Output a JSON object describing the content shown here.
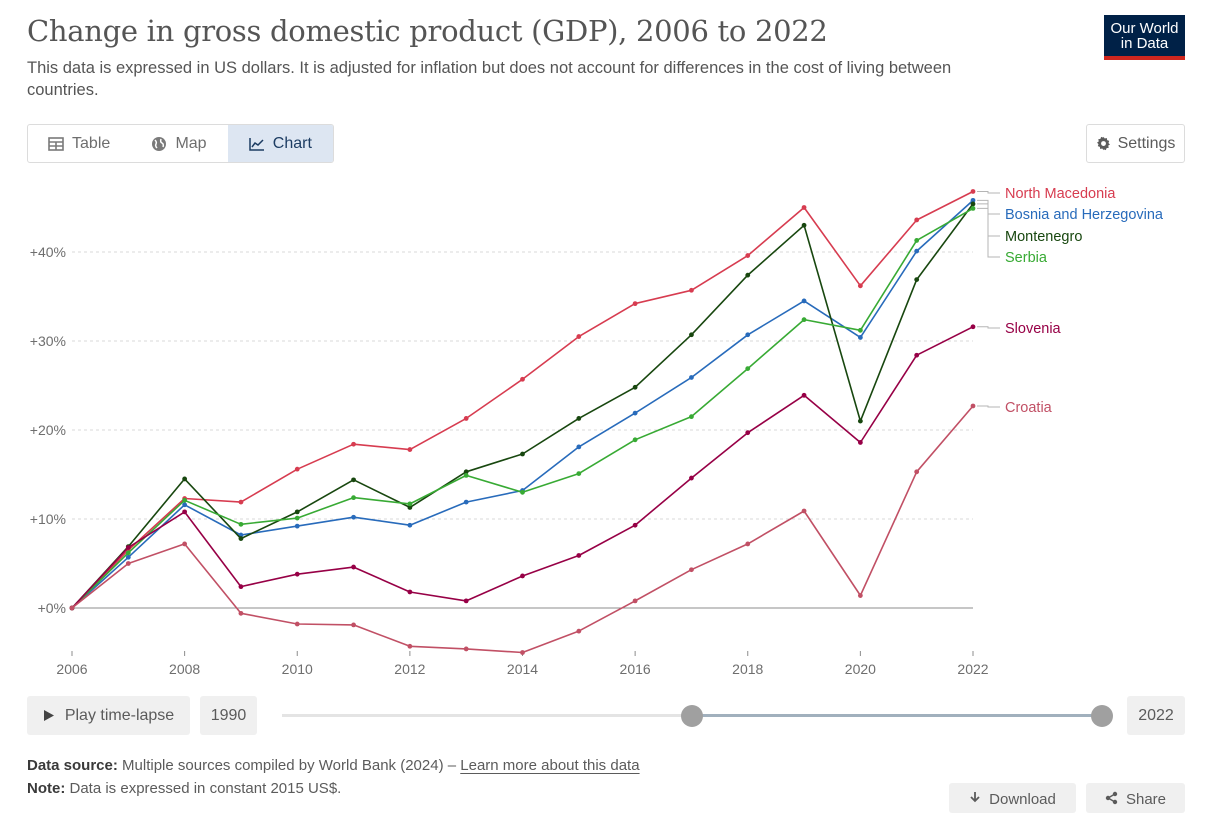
{
  "header": {
    "title": "Change in gross domestic product (GDP), 2006 to 2022",
    "subtitle": "This data is expressed in US dollars. It is adjusted for inflation but does not account for differences in the cost of living between countries.",
    "logo_line1": "Our World",
    "logo_line2": "in Data"
  },
  "tabs": [
    {
      "label": "Table",
      "icon": "table-icon"
    },
    {
      "label": "Map",
      "icon": "globe-icon"
    },
    {
      "label": "Chart",
      "icon": "line-chart-icon",
      "active": true
    }
  ],
  "settings_label": "Settings",
  "timeline": {
    "play_label": "Play time-lapse",
    "start_year": "1990",
    "end_year": "2022",
    "selected_range": [
      2006,
      2022
    ]
  },
  "footer": {
    "source_label": "Data source:",
    "source_text": "Multiple sources compiled by World Bank (2024) –",
    "source_link": "Learn more about this data",
    "note_label": "Note:",
    "note_text": "Data is expressed in constant 2015 US$.",
    "download_label": "Download",
    "share_label": "Share"
  },
  "chart_data": {
    "type": "line",
    "x": [
      2006,
      2007,
      2008,
      2009,
      2010,
      2011,
      2012,
      2013,
      2014,
      2015,
      2016,
      2017,
      2018,
      2019,
      2020,
      2021,
      2022
    ],
    "xticks": [
      2006,
      2008,
      2010,
      2012,
      2014,
      2016,
      2018,
      2020,
      2022
    ],
    "xtick_labels": [
      "2006",
      "2008",
      "2010",
      "2012",
      "2014",
      "2016",
      "2018",
      "2020",
      "2022"
    ],
    "yticks": [
      0,
      10,
      20,
      30,
      40
    ],
    "ytick_labels": [
      "+0%",
      "+10%",
      "+20%",
      "+30%",
      "+40%"
    ],
    "ylim": [
      -5,
      47
    ],
    "grid": "horizontal-dashed",
    "legend": "right-line-labels",
    "series": [
      {
        "name": "North Macedonia",
        "color": "#d73c50",
        "values": [
          0,
          6.5,
          12.3,
          11.9,
          15.6,
          18.4,
          17.8,
          21.3,
          25.7,
          30.5,
          34.2,
          35.7,
          39.6,
          45.0,
          36.2,
          43.6,
          46.8
        ]
      },
      {
        "name": "Bosnia and Herzegovina",
        "color": "#286bbb",
        "values": [
          0,
          5.7,
          11.6,
          8.2,
          9.2,
          10.2,
          9.3,
          11.9,
          13.2,
          18.1,
          21.9,
          25.9,
          30.7,
          34.5,
          30.4,
          40.1,
          45.8
        ]
      },
      {
        "name": "Montenegro",
        "color": "#18470f",
        "values": [
          0,
          6.9,
          14.5,
          7.8,
          10.8,
          14.4,
          11.3,
          15.3,
          17.3,
          21.3,
          24.8,
          30.7,
          37.4,
          43.0,
          21.0,
          36.9,
          45.4
        ]
      },
      {
        "name": "Serbia",
        "color": "#38aa34",
        "values": [
          0,
          6.2,
          12.1,
          9.4,
          10.1,
          12.4,
          11.7,
          14.9,
          13.0,
          15.1,
          18.9,
          21.5,
          26.9,
          32.4,
          31.2,
          41.3,
          44.9
        ]
      },
      {
        "name": "Slovenia",
        "color": "#970046",
        "values": [
          0,
          6.8,
          10.8,
          2.4,
          3.8,
          4.6,
          1.8,
          0.8,
          3.6,
          5.9,
          9.3,
          14.6,
          19.7,
          23.9,
          18.6,
          28.4,
          31.6
        ]
      },
      {
        "name": "Croatia",
        "color": "#c15065",
        "values": [
          0,
          5.0,
          7.2,
          -0.6,
          -1.8,
          -1.9,
          -4.3,
          -4.6,
          -5.0,
          -2.6,
          0.8,
          4.3,
          7.2,
          10.9,
          1.4,
          15.3,
          22.7
        ]
      }
    ]
  }
}
